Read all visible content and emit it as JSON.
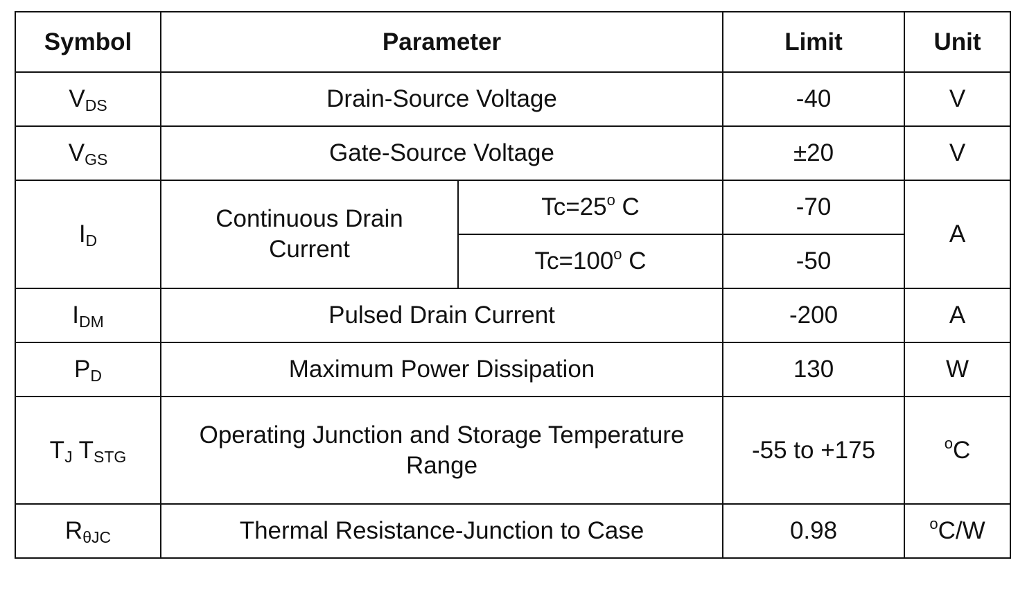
{
  "headers": {
    "symbol": "Symbol",
    "parameter": "Parameter",
    "limit": "Limit",
    "unit": "Unit"
  },
  "rows": {
    "vds": {
      "symbol_main": "V",
      "symbol_sub": "DS",
      "parameter": "Drain-Source Voltage",
      "limit": "-40",
      "unit": "V"
    },
    "vgs": {
      "symbol_main": "V",
      "symbol_sub": "GS",
      "parameter": "Gate-Source Voltage",
      "limit": "±20",
      "unit": "V"
    },
    "id": {
      "symbol_main": "I",
      "symbol_sub": "D",
      "parameter_line1": "Continuous Drain",
      "parameter_line2": "Current",
      "cond1_prefix": "Tc=25",
      "cond1_deg": "o",
      "cond1_suffix": " C",
      "limit1": "-70",
      "cond2_prefix": "Tc=100",
      "cond2_deg": "o",
      "cond2_suffix": " C",
      "limit2": "-50",
      "unit": "A"
    },
    "idm": {
      "symbol_main": "I",
      "symbol_sub": "DM",
      "parameter": "Pulsed Drain Current",
      "limit": "-200",
      "unit": "A"
    },
    "pd": {
      "symbol_main": "P",
      "symbol_sub": "D",
      "parameter": "Maximum Power Dissipation",
      "limit": "130",
      "unit": "W"
    },
    "tj": {
      "symbol_main1": "T",
      "symbol_sub1": "J",
      "symbol_main2": " T",
      "symbol_sub2": "STG",
      "parameter_line1": "Operating Junction and Storage Temperature",
      "parameter_line2": "Range",
      "limit": "-55 to +175",
      "unit_deg": "o",
      "unit_suffix": "C"
    },
    "rthjc": {
      "symbol_main": "R",
      "symbol_sub": "θJC",
      "parameter": "Thermal Resistance-Junction to Case",
      "limit": "0.98",
      "unit_deg": "o",
      "unit_suffix": "C/W"
    }
  }
}
